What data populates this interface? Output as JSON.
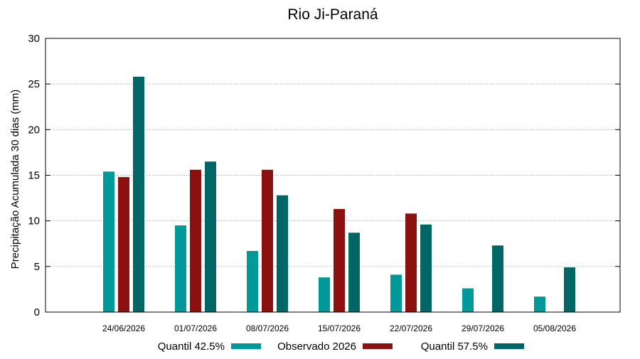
{
  "chart_data": {
    "type": "bar",
    "title": "Rio Ji-Paraná",
    "xlabel": "",
    "ylabel": "Precipitação Acumulada 30 dias (mm)",
    "ylim": [
      0,
      30
    ],
    "yticks": [
      0,
      5,
      10,
      15,
      20,
      25,
      30
    ],
    "grid": true,
    "legend_position": "bottom",
    "categories": [
      "24/06/2026",
      "01/07/2026",
      "08/07/2026",
      "15/07/2026",
      "22/07/2026",
      "29/07/2026",
      "05/08/2026"
    ],
    "series": [
      {
        "name": "Quantil 42.5%",
        "color": "#009999",
        "values": [
          15.4,
          9.5,
          6.7,
          3.8,
          4.1,
          2.6,
          1.7
        ]
      },
      {
        "name": "Observado 2026",
        "color": "#8b1010",
        "values": [
          14.8,
          15.6,
          15.6,
          11.3,
          10.8,
          null,
          null
        ]
      },
      {
        "name": "Quantil 57.5%",
        "color": "#006666",
        "values": [
          25.8,
          16.5,
          12.8,
          8.7,
          9.6,
          7.3,
          4.9
        ]
      }
    ]
  }
}
